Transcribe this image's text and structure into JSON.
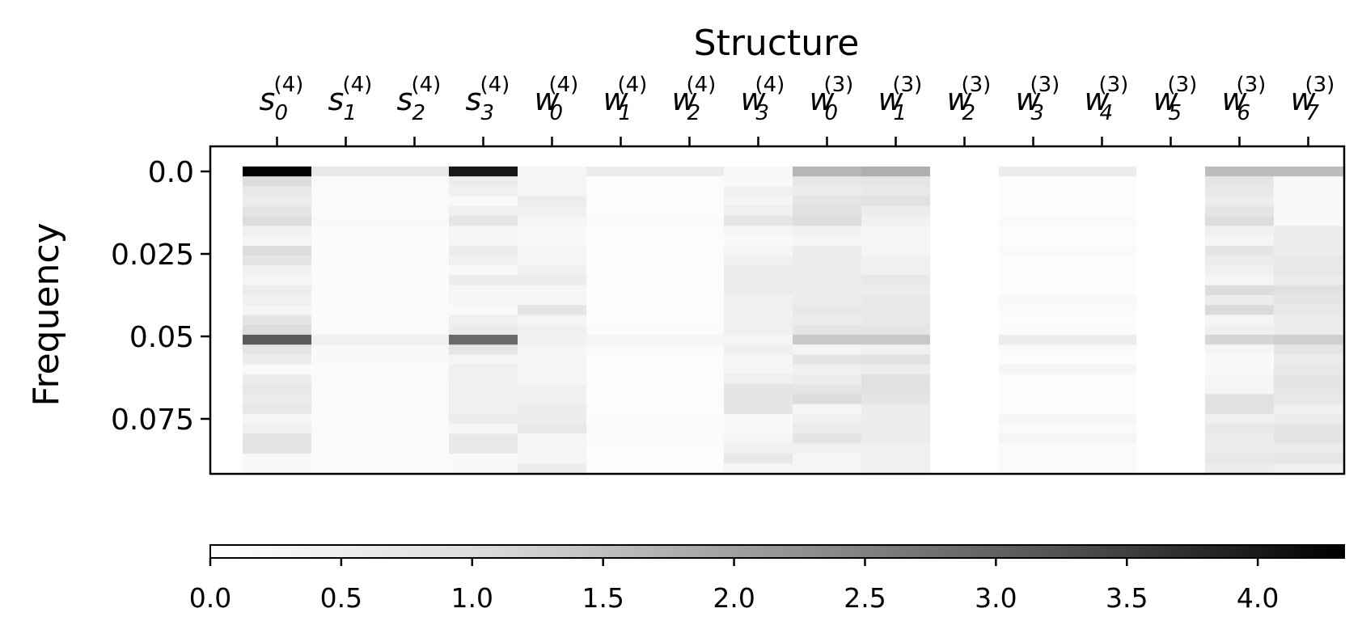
{
  "chart_data": {
    "type": "heatmap",
    "title": "Structure",
    "ylabel": "Frequency",
    "xlabel": "",
    "colormap": "Greys",
    "columns": [
      {
        "base": "s",
        "sub": "0",
        "sup": "(4)"
      },
      {
        "base": "s",
        "sub": "1",
        "sup": "(4)"
      },
      {
        "base": "s",
        "sub": "2",
        "sup": "(4)"
      },
      {
        "base": "s",
        "sub": "3",
        "sup": "(4)"
      },
      {
        "base": "w",
        "sub": "0",
        "sup": "(4)"
      },
      {
        "base": "w",
        "sub": "1",
        "sup": "(4)"
      },
      {
        "base": "w",
        "sub": "2",
        "sup": "(4)"
      },
      {
        "base": "w",
        "sub": "3",
        "sup": "(4)"
      },
      {
        "base": "w",
        "sub": "0",
        "sup": "(3)"
      },
      {
        "base": "w",
        "sub": "1",
        "sup": "(3)"
      },
      {
        "base": "w",
        "sub": "2",
        "sup": "(3)"
      },
      {
        "base": "w",
        "sub": "3",
        "sup": "(3)"
      },
      {
        "base": "w",
        "sub": "4",
        "sup": "(3)"
      },
      {
        "base": "w",
        "sub": "5",
        "sup": "(3)"
      },
      {
        "base": "w",
        "sub": "6",
        "sup": "(3)"
      },
      {
        "base": "w",
        "sub": "7",
        "sup": "(3)"
      }
    ],
    "y_ticks": [
      0.0,
      0.025,
      0.05,
      0.075
    ],
    "y_tick_labels": [
      "0.0",
      "0.025",
      "0.05",
      "0.075"
    ],
    "ylim": [
      0.0,
      0.09
    ],
    "y_inverted": true,
    "row_centers": [
      0.0,
      0.003,
      0.006,
      0.009,
      0.012,
      0.015,
      0.018,
      0.021,
      0.024,
      0.027,
      0.03,
      0.033,
      0.036,
      0.039,
      0.042,
      0.045,
      0.048,
      0.051,
      0.054,
      0.057,
      0.06,
      0.063,
      0.066,
      0.069,
      0.072,
      0.075,
      0.078,
      0.081,
      0.084,
      0.087,
      0.09
    ],
    "values": [
      [
        4.3,
        0.25,
        0.25,
        3.9,
        0.1,
        0.2,
        0.2,
        0.05,
        1.0,
        1.1,
        0.0,
        0.2,
        0.2,
        0.0,
        0.9,
        0.9
      ],
      [
        0.4,
        0.05,
        0.05,
        0.2,
        0.1,
        0.02,
        0.02,
        0.05,
        0.25,
        0.3,
        0.0,
        0.02,
        0.02,
        0.0,
        0.3,
        0.05
      ],
      [
        0.25,
        0.04,
        0.04,
        0.15,
        0.1,
        0.02,
        0.02,
        0.15,
        0.2,
        0.25,
        0.0,
        0.02,
        0.02,
        0.0,
        0.25,
        0.05
      ],
      [
        0.2,
        0.03,
        0.03,
        0.05,
        0.2,
        0.02,
        0.02,
        0.1,
        0.3,
        0.35,
        0.0,
        0.02,
        0.02,
        0.0,
        0.2,
        0.05
      ],
      [
        0.3,
        0.04,
        0.04,
        0.15,
        0.15,
        0.02,
        0.02,
        0.15,
        0.35,
        0.2,
        0.0,
        0.02,
        0.02,
        0.0,
        0.3,
        0.05
      ],
      [
        0.4,
        0.05,
        0.05,
        0.3,
        0.1,
        0.03,
        0.03,
        0.3,
        0.4,
        0.15,
        0.0,
        0.04,
        0.04,
        0.0,
        0.4,
        0.05
      ],
      [
        0.15,
        0.03,
        0.03,
        0.1,
        0.05,
        0.02,
        0.02,
        0.1,
        0.15,
        0.1,
        0.0,
        0.02,
        0.02,
        0.0,
        0.15,
        0.2
      ],
      [
        0.1,
        0.03,
        0.03,
        0.1,
        0.05,
        0.02,
        0.02,
        0.05,
        0.1,
        0.1,
        0.0,
        0.02,
        0.02,
        0.0,
        0.1,
        0.2
      ],
      [
        0.4,
        0.03,
        0.03,
        0.2,
        0.1,
        0.02,
        0.02,
        0.1,
        0.2,
        0.1,
        0.0,
        0.04,
        0.04,
        0.0,
        0.3,
        0.2
      ],
      [
        0.3,
        0.03,
        0.03,
        0.15,
        0.1,
        0.02,
        0.02,
        0.15,
        0.2,
        0.15,
        0.0,
        0.02,
        0.02,
        0.0,
        0.2,
        0.25
      ],
      [
        0.15,
        0.03,
        0.03,
        0.05,
        0.15,
        0.02,
        0.02,
        0.2,
        0.2,
        0.15,
        0.0,
        0.02,
        0.02,
        0.0,
        0.15,
        0.25
      ],
      [
        0.1,
        0.03,
        0.03,
        0.2,
        0.2,
        0.02,
        0.02,
        0.2,
        0.2,
        0.25,
        0.0,
        0.02,
        0.02,
        0.0,
        0.1,
        0.2
      ],
      [
        0.2,
        0.03,
        0.03,
        0.1,
        0.1,
        0.02,
        0.02,
        0.2,
        0.2,
        0.2,
        0.0,
        0.02,
        0.02,
        0.0,
        0.4,
        0.35
      ],
      [
        0.15,
        0.03,
        0.03,
        0.1,
        0.1,
        0.02,
        0.02,
        0.15,
        0.2,
        0.25,
        0.0,
        0.05,
        0.05,
        0.0,
        0.2,
        0.3
      ],
      [
        0.1,
        0.04,
        0.04,
        0.05,
        0.3,
        0.02,
        0.02,
        0.15,
        0.25,
        0.25,
        0.0,
        0.04,
        0.04,
        0.0,
        0.45,
        0.25
      ],
      [
        0.3,
        0.03,
        0.03,
        0.15,
        0.1,
        0.02,
        0.02,
        0.15,
        0.2,
        0.25,
        0.0,
        0.02,
        0.02,
        0.0,
        0.1,
        0.2
      ],
      [
        0.4,
        0.04,
        0.04,
        0.2,
        0.15,
        0.03,
        0.03,
        0.15,
        0.3,
        0.3,
        0.0,
        0.04,
        0.04,
        0.0,
        0.15,
        0.2
      ],
      [
        2.6,
        0.15,
        0.15,
        2.3,
        0.15,
        0.1,
        0.1,
        0.1,
        0.7,
        0.7,
        0.0,
        0.2,
        0.2,
        0.0,
        0.5,
        0.6
      ],
      [
        0.3,
        0.05,
        0.05,
        0.3,
        0.1,
        0.04,
        0.04,
        0.15,
        0.1,
        0.15,
        0.0,
        0.04,
        0.04,
        0.0,
        0.1,
        0.3
      ],
      [
        0.2,
        0.05,
        0.05,
        0.1,
        0.1,
        0.02,
        0.02,
        0.1,
        0.3,
        0.35,
        0.0,
        0.02,
        0.02,
        0.0,
        0.05,
        0.2
      ],
      [
        0.05,
        0.04,
        0.04,
        0.15,
        0.1,
        0.02,
        0.02,
        0.1,
        0.15,
        0.2,
        0.0,
        0.1,
        0.1,
        0.0,
        0.05,
        0.25
      ],
      [
        0.2,
        0.04,
        0.04,
        0.15,
        0.1,
        0.02,
        0.02,
        0.15,
        0.2,
        0.35,
        0.0,
        0.02,
        0.02,
        0.0,
        0.1,
        0.3
      ],
      [
        0.25,
        0.03,
        0.03,
        0.15,
        0.15,
        0.02,
        0.02,
        0.3,
        0.3,
        0.35,
        0.0,
        0.02,
        0.02,
        0.0,
        0.1,
        0.3
      ],
      [
        0.2,
        0.03,
        0.03,
        0.15,
        0.15,
        0.02,
        0.02,
        0.3,
        0.4,
        0.3,
        0.0,
        0.02,
        0.02,
        0.0,
        0.35,
        0.25
      ],
      [
        0.25,
        0.03,
        0.03,
        0.15,
        0.2,
        0.02,
        0.02,
        0.3,
        0.1,
        0.2,
        0.0,
        0.02,
        0.02,
        0.0,
        0.35,
        0.15
      ],
      [
        0.1,
        0.04,
        0.04,
        0.2,
        0.2,
        0.03,
        0.03,
        0.05,
        0.15,
        0.2,
        0.0,
        0.08,
        0.08,
        0.0,
        0.15,
        0.2
      ],
      [
        0.15,
        0.04,
        0.04,
        0.1,
        0.25,
        0.04,
        0.04,
        0.05,
        0.2,
        0.2,
        0.0,
        0.04,
        0.04,
        0.0,
        0.25,
        0.3
      ],
      [
        0.3,
        0.03,
        0.03,
        0.25,
        0.1,
        0.03,
        0.03,
        0.1,
        0.3,
        0.2,
        0.0,
        0.1,
        0.1,
        0.0,
        0.2,
        0.3
      ],
      [
        0.3,
        0.03,
        0.03,
        0.25,
        0.1,
        0.02,
        0.02,
        0.15,
        0.15,
        0.15,
        0.0,
        0.04,
        0.04,
        0.0,
        0.2,
        0.2
      ],
      [
        0.05,
        0.03,
        0.03,
        0.05,
        0.1,
        0.02,
        0.02,
        0.25,
        0.1,
        0.15,
        0.0,
        0.04,
        0.04,
        0.0,
        0.25,
        0.3
      ],
      [
        0.05,
        0.03,
        0.03,
        0.05,
        0.2,
        0.02,
        0.02,
        0.1,
        0.1,
        0.15,
        0.0,
        0.04,
        0.04,
        0.0,
        0.2,
        0.15
      ]
    ],
    "colorbar": {
      "orientation": "horizontal",
      "range": [
        0.0,
        4.33
      ],
      "ticks": [
        0.0,
        0.5,
        1.0,
        1.5,
        2.0,
        2.5,
        3.0,
        3.5,
        4.0
      ],
      "tick_labels": [
        "0.0",
        "0.5",
        "1.0",
        "1.5",
        "2.0",
        "2.5",
        "3.0",
        "3.5",
        "4.0"
      ]
    }
  }
}
